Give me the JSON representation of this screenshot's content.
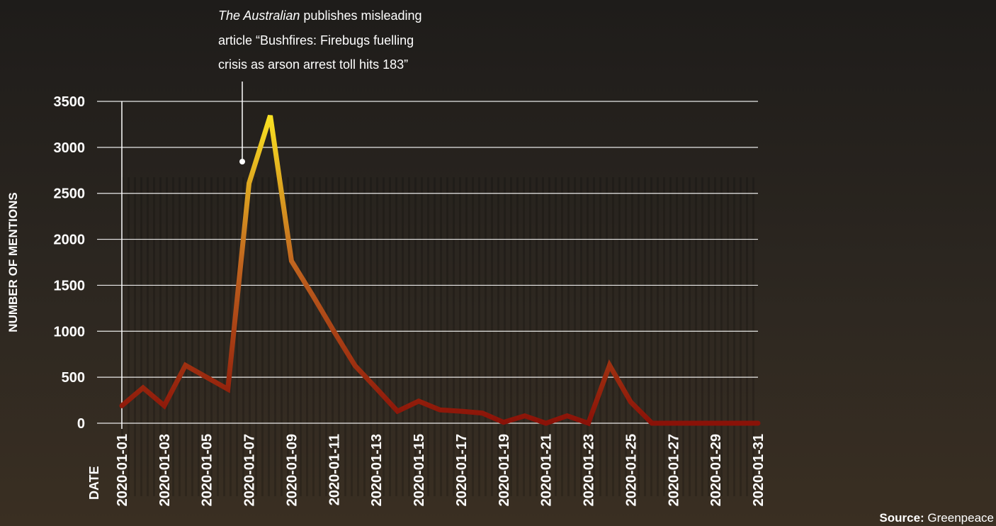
{
  "chart_data": {
    "type": "line",
    "annotation": {
      "italic": "The Australian",
      "lines": [
        " publishes misleading",
        "article “Bushfires: Firebugs fuelling",
        "crisis as arson arrest toll hits 183”"
      ]
    },
    "y_label": "NUMBER OF MENTIONS",
    "x_label": "DATE",
    "source_label": "Source:",
    "source": "Greenpeace",
    "categories": [
      "2020-01-01",
      null,
      "2020-01-03",
      null,
      "2020-01-05",
      null,
      "2020-01-07",
      null,
      "2020-01-09",
      null,
      "2020-01-11",
      null,
      "2020-01-13",
      null,
      "2020-01-15",
      null,
      "2020-01-17",
      null,
      "2020-01-19",
      null,
      "2020-01-21",
      null,
      "2020-01-23",
      null,
      "2020-01-25",
      null,
      "2020-01-27",
      null,
      "2020-01-29",
      null,
      "2020-01-31"
    ],
    "values": [
      190,
      385,
      190,
      630,
      500,
      370,
      2610,
      3345,
      1765,
      1390,
      1000,
      625,
      380,
      130,
      240,
      145,
      130,
      110,
      10,
      80,
      0,
      80,
      0,
      630,
      230,
      0,
      0,
      0,
      0,
      0,
      0
    ],
    "colors": [
      "#ffee22",
      "#c0651f",
      "#8a1208"
    ],
    "ylim": [
      0,
      3500
    ],
    "yticks": [
      0,
      500,
      1000,
      1500,
      2000,
      2500,
      3000,
      3500
    ],
    "grid": true
  }
}
